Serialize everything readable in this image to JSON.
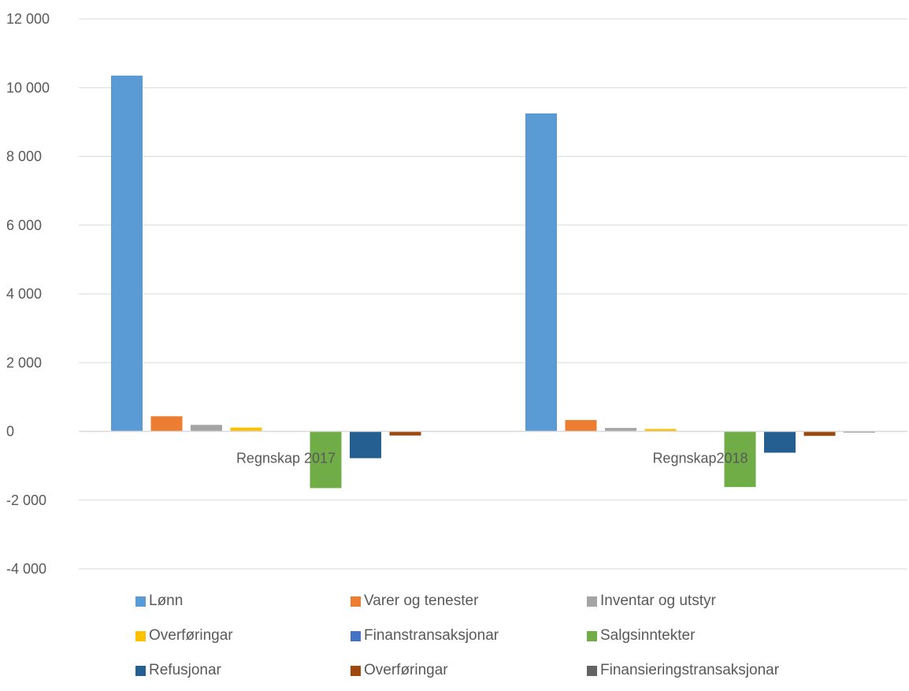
{
  "chart_data": {
    "type": "bar",
    "categories": [
      "Regnskap 2017",
      "Regnskap2018"
    ],
    "series": [
      {
        "name": "Lønn",
        "color": "#5B9BD5",
        "values": [
          10350,
          9250
        ]
      },
      {
        "name": "Varer og tenester",
        "color": "#ED7D31",
        "values": [
          440,
          330
        ]
      },
      {
        "name": "Inventar og utstyr",
        "color": "#A5A5A5",
        "values": [
          190,
          100
        ]
      },
      {
        "name": "Overføringar",
        "color": "#FFC000",
        "values": [
          110,
          70
        ]
      },
      {
        "name": "Finanstransaksjonar",
        "color": "#4472C4",
        "values": [
          5,
          5
        ]
      },
      {
        "name": "Salgsinntekter",
        "color": "#70AD47",
        "values": [
          -1650,
          -1620
        ]
      },
      {
        "name": "Refusjonar",
        "color": "#255E91",
        "values": [
          -780,
          -620
        ]
      },
      {
        "name": "Overføringar",
        "color": "#9E480E",
        "values": [
          -120,
          -130
        ]
      },
      {
        "name": "Finansieringstransaksjonar",
        "color": "#636363",
        "values": [
          0,
          -30
        ]
      }
    ],
    "ylim": [
      -4000,
      12000
    ],
    "yticks": [
      -4000,
      -2000,
      0,
      2000,
      4000,
      6000,
      8000,
      10000,
      12000
    ],
    "ytick_labels": [
      "-4 000",
      "-2 000",
      "0",
      "2 000",
      "4 000",
      "6 000",
      "8 000",
      "10 000",
      "12 000"
    ],
    "grid": true,
    "legend_position": "bottom",
    "title": "",
    "xlabel": "",
    "ylabel": ""
  }
}
